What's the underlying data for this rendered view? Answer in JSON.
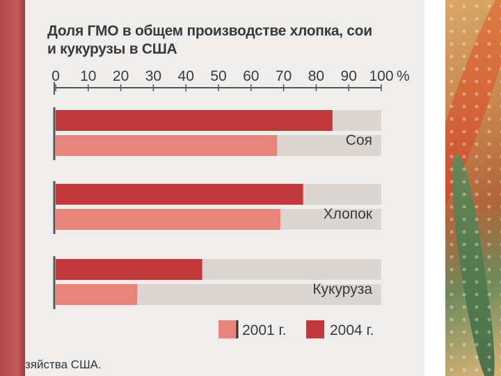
{
  "title_line1": "Доля ГМО в общем производстве хлопка, сои",
  "title_line2": "и кукурузы в США",
  "source_fragment": "зяйства США.",
  "chart_data": {
    "type": "bar",
    "orientation": "horizontal",
    "categories": [
      "Соя",
      "Хлопок",
      "Кукуруза"
    ],
    "series": [
      {
        "name": "2004 г.",
        "values": [
          85,
          76,
          45
        ],
        "color": "#c0393b"
      },
      {
        "name": "2001 г.",
        "values": [
          68,
          69,
          25
        ],
        "color": "#e8857a"
      }
    ],
    "xlim": [
      0,
      100
    ],
    "x_ticks": [
      "0",
      "10",
      "20",
      "30",
      "40",
      "50",
      "60",
      "70",
      "80",
      "90",
      "100"
    ],
    "x_unit": "%",
    "legend": [
      "2001 г.",
      "2004 г."
    ],
    "legend_position": "bottom-right",
    "grid": false,
    "track_color": "#dcd6d2"
  }
}
